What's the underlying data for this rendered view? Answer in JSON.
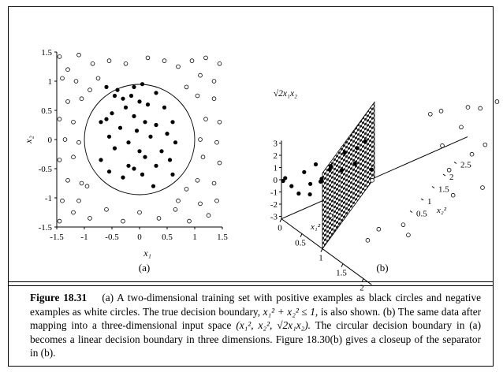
{
  "panel_a": {
    "sublabel": "(a)",
    "xlabel": "x₁",
    "ylabel": "x₂",
    "x_ticks": [
      "-1.5",
      "-1",
      "-0.5",
      "0",
      "0.5",
      "1",
      "1.5"
    ],
    "y_ticks": [
      "1.5",
      "1",
      "0.5",
      "0",
      "-0.5",
      "-1",
      "-1.5"
    ]
  },
  "panel_b": {
    "sublabel": "(b)",
    "vertical_axis_label": "√2x₁x₂",
    "vertical_ticks": [
      "3",
      "2",
      "1",
      "0",
      "-1",
      "-2",
      "-3"
    ],
    "x1sq_axis_label": "x₁²",
    "x1sq_ticks": [
      "0",
      "0.5",
      "1",
      "1.5",
      "2"
    ],
    "x2sq_axis_label": "x₂²",
    "x2sq_ticks": [
      "2.5",
      "2",
      "1.5",
      "1",
      "0.5"
    ]
  },
  "caption": {
    "label": "Figure 18.31",
    "text_1": "(a) A two-dimensional training set with positive examples as black circles and negative examples as white circles. The true decision boundary, ",
    "boundary_eq": "x₁² + x₂² ≤ 1,",
    "text_2": " is also shown. (b) The same data after mapping into a three-dimensional input space ",
    "mapping": "(x₁², x₂², √2x₁x₂).",
    "text_3": " The circular decision boundary in (a) becomes a linear decision boundary in three dimensions. Figure 18.30(b) gives a closeup of the separator in (b)."
  },
  "chart_data": [
    {
      "type": "scatter",
      "panel": "a",
      "xlabel": "x₁",
      "ylabel": "x₂",
      "xlim": [
        -1.5,
        1.5
      ],
      "ylim": [
        -1.5,
        1.5
      ],
      "decision_boundary": "x1^2 + x2^2 <= 1",
      "series": [
        {
          "marker": "filled",
          "points": [
            [
              -0.6,
              0.9
            ],
            [
              -0.4,
              0.85
            ],
            [
              -0.1,
              0.9
            ],
            [
              0.05,
              0.95
            ],
            [
              -0.45,
              0.75
            ],
            [
              -0.3,
              0.7
            ],
            [
              0.3,
              0.8
            ],
            [
              0.15,
              0.6
            ],
            [
              -0.15,
              0.75
            ],
            [
              0.0,
              0.65
            ],
            [
              -0.25,
              0.55
            ],
            [
              -0.5,
              0.45
            ],
            [
              0.45,
              0.55
            ],
            [
              -0.1,
              0.4
            ],
            [
              -0.7,
              0.3
            ],
            [
              -0.6,
              0.35
            ],
            [
              0.1,
              0.3
            ],
            [
              0.6,
              0.3
            ],
            [
              -0.35,
              0.2
            ],
            [
              0.3,
              0.25
            ],
            [
              -0.05,
              0.15
            ],
            [
              0.5,
              0.1
            ],
            [
              -0.55,
              0.05
            ],
            [
              0.2,
              0.05
            ],
            [
              -0.2,
              -0.05
            ],
            [
              0.65,
              -0.05
            ],
            [
              -0.45,
              -0.15
            ],
            [
              0.0,
              -0.2
            ],
            [
              0.4,
              -0.2
            ],
            [
              -0.7,
              -0.35
            ],
            [
              0.1,
              -0.3
            ],
            [
              0.55,
              -0.35
            ],
            [
              -0.2,
              -0.45
            ],
            [
              0.3,
              -0.45
            ],
            [
              -0.55,
              -0.55
            ],
            [
              0.05,
              -0.6
            ],
            [
              0.6,
              -0.6
            ],
            [
              -0.3,
              -0.65
            ],
            [
              0.25,
              -0.8
            ],
            [
              -0.1,
              -0.5
            ]
          ]
        },
        {
          "marker": "open",
          "points": [
            [
              -1.45,
              1.42
            ],
            [
              -1.3,
              1.2
            ],
            [
              -1.1,
              1.45
            ],
            [
              -0.85,
              1.3
            ],
            [
              -0.55,
              1.35
            ],
            [
              -0.25,
              1.3
            ],
            [
              0.15,
              1.4
            ],
            [
              0.45,
              1.35
            ],
            [
              0.7,
              1.25
            ],
            [
              0.95,
              1.35
            ],
            [
              1.2,
              1.4
            ],
            [
              1.45,
              1.3
            ],
            [
              -1.4,
              1.05
            ],
            [
              -1.15,
              1.0
            ],
            [
              1.1,
              1.1
            ],
            [
              1.35,
              1.0
            ],
            [
              -1.3,
              0.65
            ],
            [
              -1.05,
              0.7
            ],
            [
              1.05,
              0.75
            ],
            [
              1.35,
              0.7
            ],
            [
              -1.45,
              0.35
            ],
            [
              -1.2,
              0.3
            ],
            [
              1.2,
              0.35
            ],
            [
              1.45,
              0.3
            ],
            [
              -1.35,
              0.0
            ],
            [
              -1.1,
              -0.05
            ],
            [
              1.1,
              0.0
            ],
            [
              1.4,
              -0.05
            ],
            [
              -1.45,
              -0.35
            ],
            [
              -1.2,
              -0.3
            ],
            [
              1.15,
              -0.3
            ],
            [
              1.45,
              -0.4
            ],
            [
              -1.3,
              -0.7
            ],
            [
              -1.05,
              -0.75
            ],
            [
              1.05,
              -0.7
            ],
            [
              1.35,
              -0.75
            ],
            [
              -1.4,
              -1.05
            ],
            [
              -1.1,
              -1.05
            ],
            [
              1.1,
              -1.1
            ],
            [
              1.4,
              -1.05
            ],
            [
              -1.45,
              -1.4
            ],
            [
              -1.2,
              -1.25
            ],
            [
              -0.9,
              -1.35
            ],
            [
              -0.6,
              -1.2
            ],
            [
              -0.3,
              -1.4
            ],
            [
              0.0,
              -1.25
            ],
            [
              0.35,
              -1.35
            ],
            [
              0.65,
              -1.2
            ],
            [
              0.9,
              -1.4
            ],
            [
              1.25,
              -1.3
            ],
            [
              -0.9,
              0.85
            ],
            [
              0.85,
              0.9
            ],
            [
              -0.95,
              -0.8
            ],
            [
              0.85,
              -0.85
            ],
            [
              -0.75,
              1.05
            ],
            [
              0.7,
              -1.05
            ]
          ]
        }
      ]
    },
    {
      "type": "scatter",
      "panel": "b",
      "axes": [
        "x₁²",
        "x₂²",
        "√2x₁x₂"
      ],
      "decision_boundary": "x1^2 + x2^2 = 1 (plane)",
      "series": [
        {
          "marker": "filled",
          "points": [
            [
              0.36,
              0.81,
              -1.0
            ],
            [
              0.16,
              0.72,
              -0.7
            ],
            [
              0.01,
              0.81,
              -0.1
            ],
            [
              0.0,
              0.9,
              0.1
            ],
            [
              0.2,
              0.56,
              -0.6
            ],
            [
              0.09,
              0.49,
              -0.3
            ],
            [
              0.09,
              0.64,
              0.3
            ],
            [
              0.02,
              0.36,
              0.1
            ],
            [
              0.25,
              0.2,
              -0.4
            ],
            [
              0.49,
              0.09,
              -0.3
            ],
            [
              0.04,
              0.0,
              0.0
            ],
            [
              0.42,
              0.0,
              -0.1
            ],
            [
              0.2,
              0.02,
              -0.1
            ],
            [
              0.0,
              0.04,
              0.0
            ],
            [
              0.36,
              0.36,
              0.5
            ],
            [
              0.1,
              0.2,
              0.2
            ],
            [
              0.3,
              0.3,
              -0.2
            ],
            [
              0.5,
              0.2,
              0.4
            ]
          ]
        },
        {
          "marker": "open",
          "points": [
            [
              2.1,
              2.0,
              2.9
            ],
            [
              1.7,
              1.44,
              2.2
            ],
            [
              1.2,
              2.1,
              -1.5
            ],
            [
              0.72,
              1.82,
              1.5
            ],
            [
              0.3,
              1.8,
              -1.0
            ],
            [
              0.06,
              1.69,
              0.1
            ],
            [
              1.44,
              1.21,
              -1.8
            ],
            [
              1.82,
              1.0,
              1.9
            ],
            [
              1.96,
              0.5,
              -1.4
            ],
            [
              1.1,
              0.49,
              1.0
            ],
            [
              2.1,
              0.12,
              0.7
            ],
            [
              1.2,
              0.0,
              0.0
            ],
            [
              1.9,
              0.09,
              -0.6
            ],
            [
              1.7,
              0.56,
              -1.4
            ],
            [
              1.2,
              1.2,
              1.7
            ],
            [
              0.81,
              1.69,
              -1.6
            ],
            [
              0.81,
              1.96,
              1.8
            ],
            [
              0.1,
              1.96,
              -0.4
            ],
            [
              0.0,
              1.6,
              0.0
            ],
            [
              1.5,
              1.5,
              -2.0
            ]
          ]
        }
      ]
    }
  ]
}
